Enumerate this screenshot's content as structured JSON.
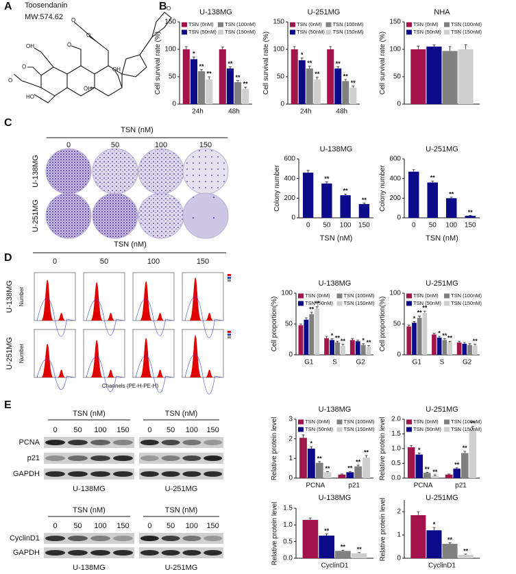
{
  "panel_labels": [
    "A",
    "B",
    "C",
    "D",
    "E"
  ],
  "structure": {
    "name": "Toosendanin",
    "weight": "MW:574.62",
    "atoms": [
      "O",
      "O",
      "O",
      "OH",
      "O",
      "OH",
      "O",
      "O",
      "OH",
      "HO"
    ]
  },
  "colony": {
    "header": "TSN (nM)",
    "columns": [
      "0",
      "50",
      "100",
      "150"
    ],
    "rows": [
      "U-138MG",
      "U-251MG"
    ]
  },
  "flow": {
    "header": "TSN (nM)",
    "columns": [
      "0",
      "50",
      "100",
      "150"
    ],
    "rows": [
      "U-138MG",
      "U-251MG"
    ],
    "y_label": "Number",
    "x_label": "Channels (PE-H-PE-H)"
  },
  "blots": [
    {
      "header": "TSN (nM)",
      "columns": [
        "0",
        "50",
        "100",
        "150"
      ],
      "proteins": [
        "PCNA",
        "p21",
        "GAPDH"
      ],
      "cells": [
        "U-138MG",
        "U-251MG"
      ]
    },
    {
      "header": "TSN (nM)",
      "columns": [
        "0",
        "50",
        "100",
        "150"
      ],
      "proteins": [
        "CyclinD1",
        "GAPDH"
      ],
      "cells": [
        "U-138MG",
        "U-251MG"
      ]
    }
  ],
  "chart_data": [
    {
      "type": "bar",
      "title": "U-138MG",
      "y_label": "Cell survival rate (%)",
      "categories": [
        "24h",
        "48h"
      ],
      "ylim": [
        0,
        150
      ],
      "yticks": [
        0,
        50,
        100,
        150
      ],
      "legend": "top",
      "series": [
        {
          "name": "TSN (0nM)",
          "color": "#a3134c",
          "values": [
            100,
            100
          ],
          "errors": [
            5,
            4
          ]
        },
        {
          "name": "TSN (50nM)",
          "color": "#0b0b8a",
          "values": [
            82,
            65
          ],
          "errors": [
            4,
            3
          ],
          "significance": [
            "*",
            "**"
          ]
        },
        {
          "name": "TSN (100nM)",
          "color": "#808080",
          "values": [
            60,
            40
          ],
          "errors": [
            3,
            3
          ],
          "significance": [
            "**",
            "**"
          ]
        },
        {
          "name": "TSN (150nM)",
          "color": "#cfcfcf",
          "values": [
            45,
            28
          ],
          "errors": [
            5,
            3
          ],
          "significance": [
            "**",
            "**"
          ]
        }
      ]
    },
    {
      "type": "bar",
      "title": "U-251MG",
      "y_label": "Cell survival rate (%)",
      "categories": [
        "24h",
        "48h"
      ],
      "ylim": [
        0,
        150
      ],
      "yticks": [
        0,
        50,
        100,
        150
      ],
      "legend": "top",
      "series": [
        {
          "name": "TSN (0nM)",
          "color": "#a3134c",
          "values": [
            100,
            100
          ],
          "errors": [
            5,
            5
          ]
        },
        {
          "name": "TSN (50nM)",
          "color": "#0b0b8a",
          "values": [
            80,
            65
          ],
          "errors": [
            4,
            3
          ],
          "significance": [
            "*",
            "**"
          ]
        },
        {
          "name": "TSN (100nM)",
          "color": "#808080",
          "values": [
            65,
            42
          ],
          "errors": [
            4,
            3
          ],
          "significance": [
            "**",
            "**"
          ]
        },
        {
          "name": "TSN (150nM)",
          "color": "#cfcfcf",
          "values": [
            45,
            30
          ],
          "errors": [
            4,
            3
          ],
          "significance": [
            "**",
            "**"
          ]
        }
      ]
    },
    {
      "type": "bar",
      "title": "NHA",
      "y_label": "Cell survival rate (%)",
      "categories": [
        null
      ],
      "ylim": [
        0,
        150
      ],
      "yticks": [
        0,
        50,
        100,
        150
      ],
      "legend": "top",
      "series": [
        {
          "name": "TSN (0nM)",
          "color": "#a3134c",
          "values": [
            100
          ],
          "errors": [
            6
          ]
        },
        {
          "name": "TSN (50nM)",
          "color": "#0b0b8a",
          "values": [
            105
          ],
          "errors": [
            3
          ]
        },
        {
          "name": "TSN (100nM)",
          "color": "#808080",
          "values": [
            97
          ],
          "errors": [
            8
          ]
        },
        {
          "name": "TSN (150nM)",
          "color": "#cfcfcf",
          "values": [
            100
          ],
          "errors": [
            8
          ]
        }
      ]
    },
    {
      "type": "bar",
      "title": "U-138MG",
      "y_label": "Colony number",
      "x_label": "TSN (nM)",
      "categories": [
        "0",
        "50",
        "100",
        "150"
      ],
      "values": [
        460,
        350,
        230,
        140
      ],
      "errors": [
        25,
        15,
        12,
        10
      ],
      "significance": [
        null,
        "**",
        "**",
        "**"
      ],
      "color": "#0b0b8a",
      "ylim": [
        0,
        600
      ],
      "yticks": [
        0,
        200,
        400,
        600
      ]
    },
    {
      "type": "bar",
      "title": "U-251MG",
      "y_label": "Colony number",
      "x_label": "TSN (nM)",
      "categories": [
        "0",
        "50",
        "100",
        "150"
      ],
      "values": [
        470,
        360,
        200,
        20
      ],
      "errors": [
        20,
        15,
        10,
        5
      ],
      "significance": [
        null,
        "**",
        "**",
        "**"
      ],
      "color": "#0b0b8a",
      "ylim": [
        0,
        600
      ],
      "yticks": [
        0,
        200,
        400,
        600
      ]
    },
    {
      "type": "bar",
      "title": "U-138MG",
      "y_label": "Cell proportion(%)",
      "categories": [
        "G1",
        "S",
        "G2"
      ],
      "ylim": [
        0,
        100
      ],
      "yticks": [
        0,
        50,
        100
      ],
      "legend": "top",
      "series": [
        {
          "name": "TSN (0nM)",
          "color": "#a3134c",
          "values": [
            48,
            27,
            24
          ],
          "errors": [
            2,
            3,
            2
          ]
        },
        {
          "name": "TSN (50nM)",
          "color": "#0b0b8a",
          "values": [
            57,
            24,
            22
          ],
          "errors": [
            3,
            2,
            2
          ],
          "significance": [
            null,
            "*",
            null
          ]
        },
        {
          "name": "TSN (100nM)",
          "color": "#808080",
          "values": [
            66,
            20,
            16
          ],
          "errors": [
            3,
            2,
            2
          ],
          "significance": [
            "**",
            "**",
            "*"
          ]
        },
        {
          "name": "TSN (150nM)",
          "color": "#cfcfcf",
          "values": [
            75,
            15,
            13
          ],
          "errors": [
            3,
            2,
            2
          ],
          "significance": [
            "**",
            "**",
            "**"
          ]
        }
      ]
    },
    {
      "type": "bar",
      "title": "U-251MG",
      "y_label": "Cell proportion(%)",
      "categories": [
        "G1",
        "S",
        "G2"
      ],
      "ylim": [
        0,
        100
      ],
      "yticks": [
        0,
        50,
        100
      ],
      "legend": "top",
      "series": [
        {
          "name": "TSN (0nM)",
          "color": "#a3134c",
          "values": [
            46,
            33,
            20
          ],
          "errors": [
            2,
            2,
            2
          ]
        },
        {
          "name": "TSN (50nM)",
          "color": "#0b0b8a",
          "values": [
            52,
            28,
            18
          ],
          "errors": [
            2,
            2,
            2
          ],
          "significance": [
            "*",
            "*",
            null
          ]
        },
        {
          "name": "TSN (100nM)",
          "color": "#808080",
          "values": [
            60,
            24,
            16
          ],
          "errors": [
            3,
            2,
            2
          ],
          "significance": [
            "**",
            "**",
            null
          ]
        },
        {
          "name": "TSN (150nM)",
          "color": "#cfcfcf",
          "values": [
            68,
            20,
            15
          ],
          "errors": [
            3,
            2,
            2
          ],
          "significance": [
            "**",
            "**",
            "**"
          ]
        }
      ]
    },
    {
      "type": "bar",
      "title": "U-138MG",
      "y_label": "Relative protein level",
      "categories": [
        "PCNA",
        "p21"
      ],
      "ylim": [
        0,
        3
      ],
      "yticks": [
        0,
        1,
        2,
        3
      ],
      "legend": "top",
      "series": [
        {
          "name": "TSN (0nM)",
          "color": "#a3134c",
          "values": [
            2.05,
            0.18
          ],
          "errors": [
            0.15,
            0.03
          ]
        },
        {
          "name": "TSN (50nM)",
          "color": "#0b0b8a",
          "values": [
            1.5,
            0.3
          ],
          "errors": [
            0.1,
            0.04
          ],
          "significance": [
            "*",
            "**"
          ]
        },
        {
          "name": "TSN (100nM)",
          "color": "#808080",
          "values": [
            0.78,
            0.6
          ],
          "errors": [
            0.06,
            0.06
          ],
          "significance": [
            "**",
            "**"
          ]
        },
        {
          "name": "TSN (150nM)",
          "color": "#cfcfcf",
          "values": [
            0.3,
            1.05
          ],
          "errors": [
            0.03,
            0.1
          ],
          "significance": [
            "**",
            "**"
          ]
        }
      ]
    },
    {
      "type": "bar",
      "title": "U-251MG",
      "y_label": "Relative protein level",
      "categories": [
        "PCNA",
        "p21"
      ],
      "ylim": [
        0,
        2
      ],
      "yticks": [
        {
          "value": 0,
          "label": "0.0"
        },
        {
          "value": 0.5,
          "label": "0.5"
        },
        {
          "value": 1,
          "label": "1.0"
        },
        {
          "value": 1.5,
          "label": "1.5"
        },
        {
          "value": 2,
          "label": "2.0"
        }
      ],
      "legend": "top",
      "series": [
        {
          "name": "TSN (0nM)",
          "color": "#a3134c",
          "values": [
            1.05,
            0.12
          ],
          "errors": [
            0.06,
            0.02
          ]
        },
        {
          "name": "TSN (50nM)",
          "color": "#0b0b8a",
          "values": [
            0.8,
            0.32
          ],
          "errors": [
            0.05,
            0.03
          ],
          "significance": [
            "*",
            "**"
          ]
        },
        {
          "name": "TSN (100nM)",
          "color": "#808080",
          "values": [
            0.18,
            0.85
          ],
          "errors": [
            0.02,
            0.06
          ],
          "significance": [
            "**",
            "**"
          ]
        },
        {
          "name": "TSN (150nM)",
          "color": "#cfcfcf",
          "values": [
            0.08,
            1.65
          ],
          "errors": [
            0.02,
            0.1
          ],
          "significance": [
            "**",
            "**"
          ]
        }
      ]
    },
    {
      "type": "bar",
      "title": "U-138MG",
      "y_label": "Relative protein level",
      "categories": [
        "CyclinD1"
      ],
      "ylim": [
        0,
        1.5
      ],
      "yticks": [
        {
          "value": 0,
          "label": "0.0"
        },
        {
          "value": 0.5,
          "label": "0.5"
        },
        {
          "value": 1,
          "label": "1.0"
        },
        {
          "value": 1.5,
          "label": "1.5"
        }
      ],
      "series": [
        {
          "color": "#a3134c",
          "values": [
            1.15
          ],
          "errors": [
            0.06
          ]
        },
        {
          "color": "#0b0b8a",
          "values": [
            0.68
          ],
          "errors": [
            0.05
          ],
          "significance": [
            "**"
          ]
        },
        {
          "color": "#808080",
          "values": [
            0.22
          ],
          "errors": [
            0.02
          ],
          "significance": [
            "**"
          ]
        },
        {
          "color": "#cfcfcf",
          "values": [
            0.15
          ],
          "errors": [
            0.02
          ],
          "significance": [
            "**"
          ]
        }
      ]
    },
    {
      "type": "bar",
      "title": "U-251MG",
      "y_label": "Relative protein level",
      "categories": [
        "CyclinD1"
      ],
      "ylim": [
        0,
        2.5
      ],
      "yticks": [
        0,
        1,
        2
      ],
      "series": [
        {
          "color": "#a3134c",
          "values": [
            1.85
          ],
          "errors": [
            0.15
          ]
        },
        {
          "color": "#0b0b8a",
          "values": [
            1.2
          ],
          "errors": [
            0.12
          ],
          "significance": [
            "*"
          ]
        },
        {
          "color": "#808080",
          "values": [
            0.62
          ],
          "errors": [
            0.04
          ],
          "significance": [
            "**"
          ]
        },
        {
          "color": "#cfcfcf",
          "values": [
            0.15
          ],
          "errors": [
            0.03
          ],
          "significance": [
            "**"
          ]
        }
      ]
    }
  ]
}
